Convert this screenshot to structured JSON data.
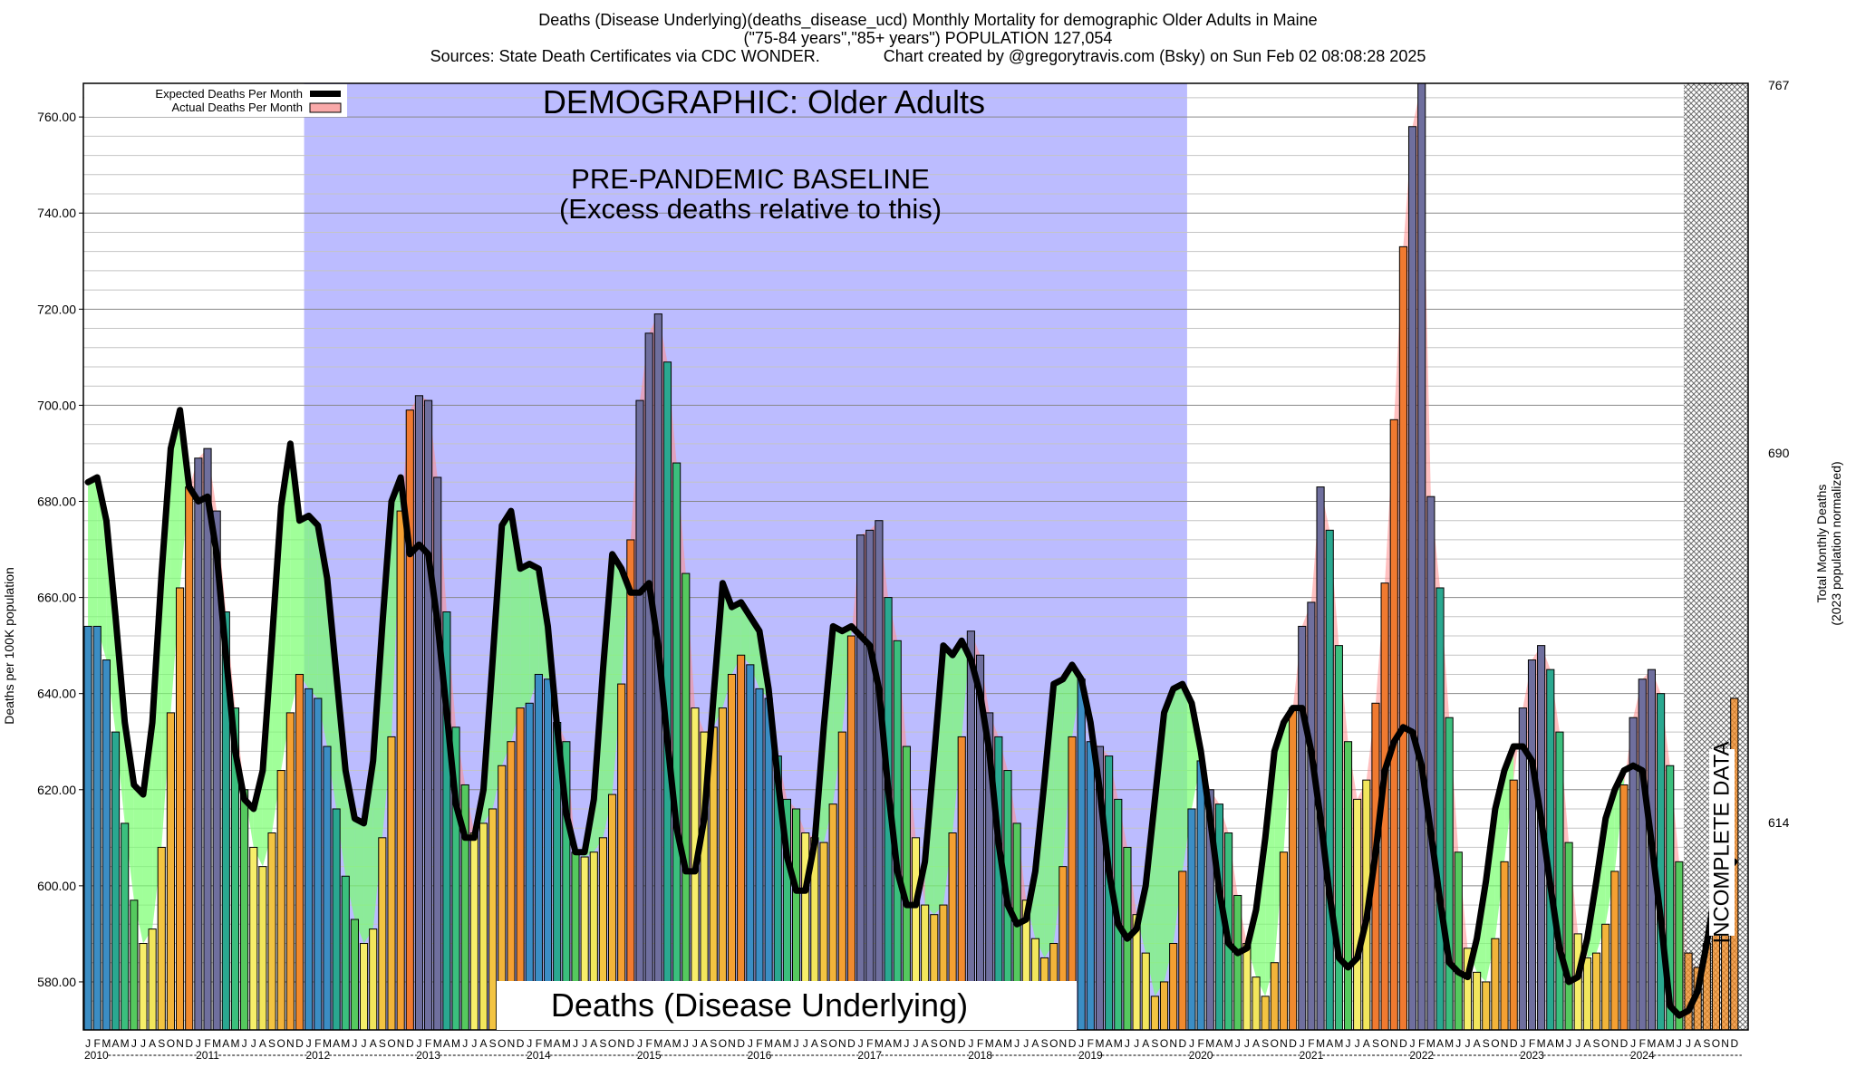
{
  "title": {
    "line1": "Deaths (Disease Underlying)(deaths_disease_ucd) Monthly Mortality for demographic Older Adults in Maine",
    "line2": "(\"75-84 years\",\"85+ years\") POPULATION 127,054",
    "line3": "Sources: State Death Certificates via CDC WONDER.              Chart created by @gregorytravis.com (Bsky) on Sun Feb 02 08:08:28 2025"
  },
  "chart_data": {
    "type": "bar",
    "ylabel": "Deaths per 100K population",
    "ylabel_right": [
      "Total Monthly Deaths",
      "(2023 population normalized)"
    ],
    "ylim": [
      570,
      767
    ],
    "yticks": [
      "580.00",
      "600.00",
      "620.00",
      "640.00",
      "660.00",
      "680.00",
      "700.00",
      "720.00",
      "740.00",
      "760.00"
    ],
    "yticks_right": [
      "614",
      "690",
      "767"
    ],
    "legend": {
      "placement": "top-left",
      "items": [
        "Expected Deaths Per Month",
        "Actual Deaths Per Month"
      ]
    },
    "banner_top": "DEMOGRAPHIC: Older Adults",
    "baseline_text": [
      "PRE-PANDEMIC BASELINE",
      "(Excess deaths relative to this)"
    ],
    "banner_bottom": "Deaths (Disease Underlying)",
    "incomplete_label": "INCOMPLETE DATA",
    "baseline_period": [
      "2012-01",
      "2019-12"
    ],
    "month_letters": [
      "J",
      "F",
      "M",
      "A",
      "M",
      "J",
      "J",
      "A",
      "S",
      "O",
      "N",
      "D"
    ],
    "years": [
      "2010",
      "2011",
      "2012",
      "2013",
      "2014",
      "2015",
      "2016",
      "2017",
      "2018",
      "2019",
      "2020",
      "2021",
      "2022",
      "2023",
      "2024"
    ],
    "actual": [
      654,
      654,
      647,
      632,
      613,
      597,
      588,
      591,
      608,
      636,
      662,
      683,
      689,
      691,
      678,
      657,
      637,
      620,
      608,
      604,
      611,
      624,
      636,
      644,
      641,
      639,
      629,
      616,
      602,
      593,
      588,
      591,
      610,
      631,
      678,
      699,
      702,
      701,
      685,
      657,
      633,
      621,
      611,
      613,
      616,
      625,
      630,
      637,
      638,
      644,
      643,
      634,
      630,
      607,
      606,
      607,
      610,
      619,
      642,
      672,
      701,
      715,
      719,
      709,
      688,
      665,
      637,
      632,
      633,
      637,
      644,
      648,
      646,
      641,
      639,
      627,
      618,
      616,
      611,
      610,
      609,
      617,
      632,
      652,
      673,
      674,
      676,
      660,
      651,
      629,
      610,
      596,
      594,
      596,
      611,
      631,
      653,
      648,
      636,
      631,
      624,
      613,
      597,
      589,
      585,
      588,
      604,
      631,
      643,
      630,
      629,
      627,
      618,
      608,
      594,
      586,
      577,
      580,
      588,
      603,
      616,
      626,
      620,
      617,
      611,
      598,
      588,
      581,
      577,
      584,
      607,
      637,
      654,
      659,
      683,
      674,
      650,
      630,
      618,
      622,
      638,
      663,
      697,
      733,
      758,
      767,
      681,
      662,
      635,
      607,
      587,
      582,
      580,
      589,
      605,
      622,
      637,
      647,
      650,
      645,
      632,
      609,
      590,
      585,
      586,
      592,
      603,
      621,
      635,
      643,
      645,
      640,
      625,
      605,
      586,
      583,
      588,
      594,
      602,
      639
    ],
    "expected": [
      684,
      685,
      676,
      656,
      634,
      621,
      619,
      634,
      665,
      691,
      699,
      683,
      680,
      681,
      669,
      648,
      628,
      618,
      616,
      624,
      651,
      679,
      692,
      676,
      677,
      675,
      664,
      644,
      624,
      614,
      613,
      626,
      654,
      680,
      685,
      669,
      671,
      669,
      655,
      636,
      617,
      610,
      610,
      620,
      647,
      675,
      678,
      666,
      667,
      666,
      654,
      633,
      615,
      607,
      607,
      618,
      645,
      669,
      666,
      661,
      661,
      663,
      650,
      630,
      612,
      603,
      603,
      614,
      639,
      663,
      658,
      659,
      656,
      653,
      641,
      622,
      606,
      599,
      599,
      609,
      633,
      654,
      653,
      654,
      652,
      650,
      641,
      620,
      603,
      596,
      596,
      605,
      627,
      650,
      648,
      651,
      647,
      640,
      628,
      609,
      596,
      592,
      593,
      603,
      622,
      642,
      643,
      646,
      643,
      634,
      620,
      603,
      592,
      589,
      591,
      600,
      618,
      636,
      641,
      642,
      638,
      628,
      614,
      599,
      588,
      586,
      587,
      595,
      610,
      628,
      634,
      637,
      637,
      628,
      614,
      598,
      585,
      583,
      585,
      593,
      607,
      624,
      630,
      633,
      632,
      625,
      611,
      597,
      584,
      582,
      581,
      589,
      601,
      616,
      624,
      629,
      629,
      626,
      614,
      600,
      587,
      580,
      581,
      589,
      601,
      614,
      620,
      624,
      625,
      624,
      609,
      593,
      575,
      573,
      574,
      578,
      588,
      600,
      603,
      605
    ],
    "incomplete_from": "2024-07"
  }
}
